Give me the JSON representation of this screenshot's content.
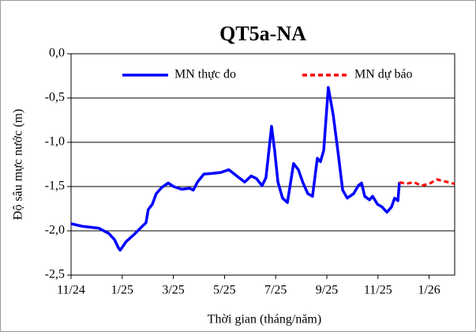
{
  "chart_data": {
    "type": "line",
    "title": "QT5a-NA",
    "x_label": "Thời gian (tháng/năm)",
    "y_label": "Độ sâu mực nước (m)",
    "xlim": [
      0,
      15
    ],
    "ylim": [
      -2.5,
      0
    ],
    "xticks": [
      {
        "value": 0,
        "label": "11/24"
      },
      {
        "value": 2,
        "label": "1/25"
      },
      {
        "value": 4,
        "label": "3/25"
      },
      {
        "value": 6,
        "label": "5/25"
      },
      {
        "value": 8,
        "label": "7/25"
      },
      {
        "value": 10,
        "label": "9/25"
      },
      {
        "value": 12,
        "label": "11/25"
      },
      {
        "value": 14,
        "label": "1/26"
      }
    ],
    "yticks": [
      {
        "value": 0,
        "label": "0,0"
      },
      {
        "value": -0.5,
        "label": "-0,5"
      },
      {
        "value": -1,
        "label": "-1,0"
      },
      {
        "value": -1.5,
        "label": "-1,5"
      },
      {
        "value": -2,
        "label": "-2,0"
      },
      {
        "value": -2.5,
        "label": "-2,5"
      }
    ],
    "grid": true,
    "legend": "top",
    "series": [
      {
        "name": "MN thực đo",
        "color": "#0000ff",
        "style": "solid",
        "x": [
          0,
          0.46,
          1.08,
          1.48,
          1.7,
          1.85,
          1.92,
          2.16,
          2.47,
          2.78,
          2.93,
          3.02,
          3.18,
          3.33,
          3.55,
          3.8,
          4.01,
          4.32,
          4.63,
          4.78,
          4.94,
          5.19,
          5.56,
          5.86,
          6.17,
          6.48,
          6.79,
          7.04,
          7.25,
          7.47,
          7.62,
          7.84,
          7.96,
          8.09,
          8.27,
          8.46,
          8.7,
          8.89,
          9.07,
          9.26,
          9.44,
          9.63,
          9.75,
          9.88,
          10.06,
          10.25,
          10.43,
          10.62,
          10.8,
          11.05,
          11.23,
          11.36,
          11.48,
          11.67,
          11.79,
          11.98,
          12.16,
          12.35,
          12.53,
          12.65,
          12.78,
          12.84
        ],
        "values": [
          -1.92,
          -1.95,
          -1.97,
          -2.03,
          -2.1,
          -2.19,
          -2.22,
          -2.12,
          -2.04,
          -1.95,
          -1.91,
          -1.76,
          -1.7,
          -1.58,
          -1.51,
          -1.46,
          -1.5,
          -1.53,
          -1.52,
          -1.54,
          -1.45,
          -1.36,
          -1.35,
          -1.34,
          -1.31,
          -1.38,
          -1.45,
          -1.38,
          -1.41,
          -1.49,
          -1.4,
          -0.82,
          -1.09,
          -1.45,
          -1.63,
          -1.68,
          -1.24,
          -1.31,
          -1.46,
          -1.58,
          -1.61,
          -1.18,
          -1.22,
          -1.09,
          -0.38,
          -0.69,
          -1.09,
          -1.54,
          -1.63,
          -1.58,
          -1.49,
          -1.46,
          -1.61,
          -1.65,
          -1.61,
          -1.7,
          -1.73,
          -1.79,
          -1.73,
          -1.63,
          -1.66,
          -1.45
        ]
      },
      {
        "name": "MN dự báo",
        "color": "#ff0000",
        "style": "dashed",
        "x": [
          12.84,
          13.1,
          13.4,
          13.7,
          14.0,
          14.3,
          14.6,
          15
        ],
        "values": [
          -1.45,
          -1.47,
          -1.45,
          -1.49,
          -1.47,
          -1.42,
          -1.44,
          -1.47
        ]
      }
    ]
  }
}
